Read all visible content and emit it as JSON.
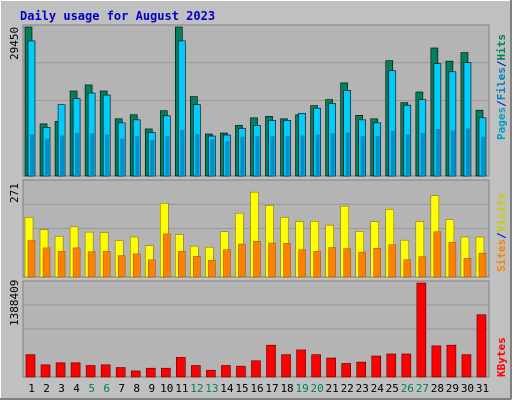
{
  "title": "Daily usage for August 2023",
  "colors": {
    "background": "#c0c0c0",
    "plot": "#b4b4b4",
    "border_dark": "#808080",
    "title": "#0000cc",
    "hits": "#00805c",
    "files": "#00ccff",
    "pages": "#00a0c0",
    "visits": "#ffff00",
    "sites": "#ff8000",
    "kbytes": "#ff0000",
    "weekday_label": "#000000",
    "weekend_label": "#00805c",
    "slash": "#0000cc"
  },
  "y_max_labels": {
    "top": "29450",
    "middle": "271",
    "bottom": "1388409"
  },
  "legend": {
    "top": {
      "pages": "Pages",
      "files": "Files",
      "hits": "Hits",
      "slash": "/"
    },
    "middle": {
      "sites": "Sites",
      "visits": "Visits",
      "slash": "/"
    },
    "bottom": {
      "kbytes": "KBytes"
    }
  },
  "chart_data": {
    "type": "bar",
    "title": "Daily usage for August 2023",
    "categories": [
      "1",
      "2",
      "3",
      "4",
      "5",
      "6",
      "7",
      "8",
      "9",
      "10",
      "11",
      "12",
      "13",
      "14",
      "15",
      "16",
      "17",
      "18",
      "19",
      "20",
      "21",
      "22",
      "23",
      "24",
      "25",
      "26",
      "27",
      "28",
      "29",
      "30",
      "31"
    ],
    "weekend_days": [
      "5",
      "6",
      "12",
      "13",
      "19",
      "20",
      "26",
      "27"
    ],
    "panels": [
      {
        "name": "top",
        "ymax": 29450,
        "series": [
          {
            "name": "Hits",
            "values": [
              29450,
              10300,
              10800,
              16800,
              18000,
              16800,
              11300,
              12100,
              9300,
              12900,
              29450,
              15700,
              8300,
              8500,
              10000,
              11500,
              11800,
              11300,
              12100,
              13900,
              15100,
              18400,
              12000,
              11300,
              22800,
              14500,
              16600,
              25300,
              22700,
              24400,
              13000
            ]
          },
          {
            "name": "Files",
            "values": [
              26700,
              9600,
              14100,
              15300,
              16400,
              16000,
              10500,
              11100,
              8600,
              11900,
              26700,
              14100,
              7900,
              8100,
              9400,
              10000,
              11000,
              11000,
              12400,
              13400,
              14300,
              16900,
              11100,
              10500,
              20800,
              14000,
              15100,
              22200,
              20600,
              22400,
              11500
            ]
          },
          {
            "name": "Pages",
            "values": [
              8200,
              7400,
              8000,
              8500,
              8400,
              8200,
              7400,
              7900,
              7100,
              7900,
              9100,
              8300,
              7300,
              6900,
              7800,
              7900,
              7900,
              7900,
              8000,
              8200,
              8400,
              8600,
              7900,
              7900,
              8900,
              8200,
              8500,
              9300,
              9000,
              9400,
              7800
            ]
          }
        ]
      },
      {
        "name": "middle",
        "ymax": 271,
        "series": [
          {
            "name": "Visits",
            "values": [
              170,
              135,
              116,
              143,
              128,
              127,
              104,
              114,
              89,
              210,
              121,
              88,
              85,
              129,
              182,
              242,
              204,
              170,
              158,
              159,
              148,
              202,
              130,
              158,
              193,
              105,
              158,
              232,
              164,
              114,
              114
            ]
          },
          {
            "name": "Sites",
            "values": [
              104,
              83,
              73,
              83,
              72,
              73,
              61,
              66,
              49,
              123,
              73,
              59,
              48,
              78,
              94,
              102,
              97,
              96,
              78,
              73,
              84,
              81,
              71,
              82,
              92,
              49,
              58,
              129,
              99,
              53,
              68
            ]
          }
        ]
      },
      {
        "name": "bottom",
        "ymax": 1388409,
        "series": [
          {
            "name": "KBytes",
            "values": [
              330000,
              180000,
              210000,
              210000,
              170000,
              180000,
              140000,
              90000,
              130000,
              130000,
              290000,
              170000,
              100000,
              170000,
              160000,
              240000,
              470000,
              330000,
              400000,
              330000,
              280000,
              200000,
              220000,
              310000,
              340000,
              340000,
              1388409,
              460000,
              470000,
              330000,
              920000
            ]
          }
        ]
      }
    ]
  }
}
